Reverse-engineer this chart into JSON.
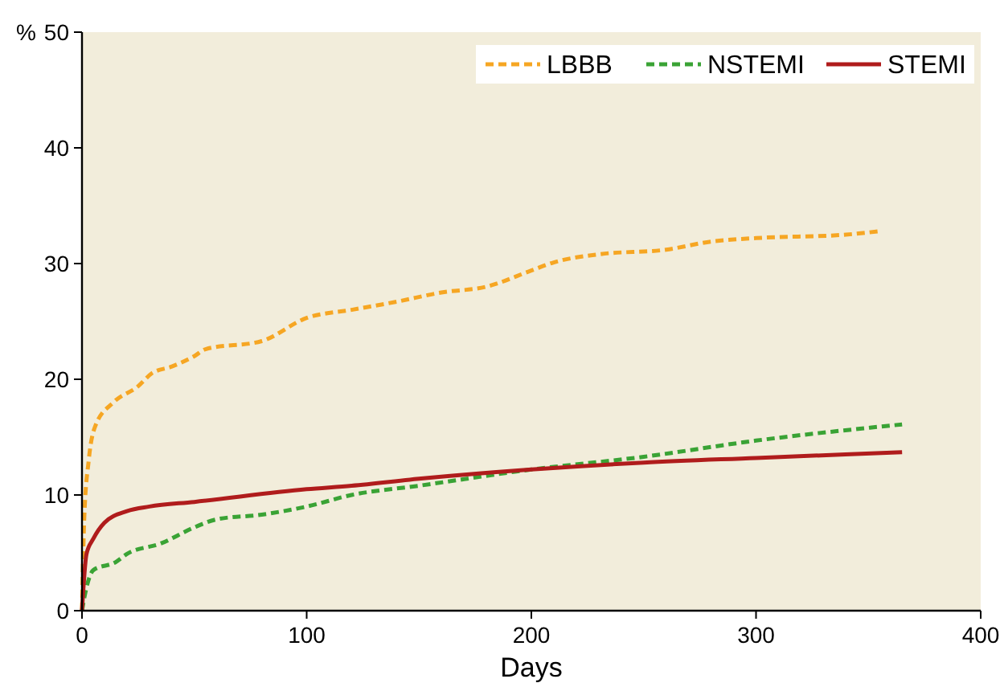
{
  "chart_data": {
    "type": "line",
    "xlabel": "Days",
    "ylabel": "%",
    "xlim": [
      0,
      400
    ],
    "ylim": [
      0,
      50
    ],
    "xticks": [
      0,
      100,
      200,
      300,
      400
    ],
    "yticks": [
      0,
      10,
      20,
      30,
      40,
      50
    ],
    "legend": "top right",
    "grid": false,
    "marker": "none",
    "series": [
      {
        "name": "LBBB",
        "color": "#f6a623",
        "line_style": "dashed",
        "x": [
          0,
          1,
          3,
          6,
          14,
          25,
          31,
          40,
          50,
          55,
          80,
          100,
          120,
          140,
          160,
          180,
          200,
          210,
          230,
          260,
          280,
          300,
          340,
          355
        ],
        "values": [
          0,
          8,
          13,
          16,
          18,
          19.4,
          20.5,
          21.1,
          22,
          22.6,
          23.3,
          25.3,
          26,
          26.7,
          27.5,
          28,
          29.4,
          30.1,
          30.8,
          31.2,
          31.9,
          32.2,
          32.5,
          32.8
        ]
      },
      {
        "name": "NSTEMI",
        "color": "#3aa335",
        "line_style": "dashed",
        "x": [
          0,
          2,
          5,
          15,
          20,
          35,
          50,
          60,
          80,
          100,
          120,
          150,
          200,
          250,
          300,
          365
        ],
        "values": [
          0,
          2,
          3.5,
          4.2,
          4.9,
          5.8,
          7.2,
          7.9,
          8.3,
          9,
          10,
          10.8,
          12.2,
          13.3,
          14.7,
          16.1
        ]
      },
      {
        "name": "STEMI",
        "color": "#b01c1c",
        "line_style": "solid",
        "x": [
          0,
          2,
          5,
          10,
          20,
          30,
          50,
          100,
          120,
          150,
          200,
          250,
          300,
          365
        ],
        "values": [
          0,
          4.9,
          6.2,
          7.6,
          8.6,
          9,
          9.4,
          10.5,
          10.8,
          11.4,
          12.2,
          12.8,
          13.2,
          13.7
        ]
      }
    ]
  }
}
